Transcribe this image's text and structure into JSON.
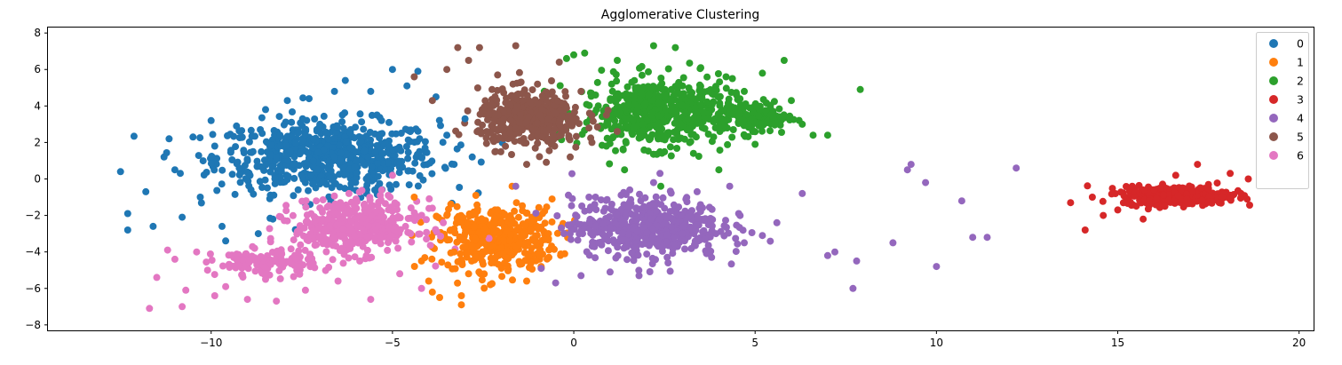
{
  "chart_data": {
    "type": "scatter",
    "title": "Agglomerative Clustering",
    "xlabel": "",
    "ylabel": "",
    "xlim": [
      -14.5,
      20.4
    ],
    "ylim": [
      -8.3,
      8.3
    ],
    "xticks": [
      -10,
      -5,
      0,
      5,
      10,
      15,
      20
    ],
    "yticks": [
      -8,
      -6,
      -4,
      -2,
      0,
      2,
      4,
      6,
      8
    ],
    "grid": false,
    "legend_position": "top-right",
    "series": [
      {
        "name": "0",
        "color": "#1f77b4",
        "approx_center": [
          -6.5,
          1.5
        ],
        "points": [
          [
            -12.5,
            0.4
          ],
          [
            -12.3,
            -1.9
          ],
          [
            -12.3,
            -2.8
          ],
          [
            -11.8,
            -0.7
          ],
          [
            -11.6,
            -2.6
          ],
          [
            -11.3,
            1.2
          ],
          [
            -11.0,
            0.5
          ],
          [
            -10.8,
            -2.1
          ],
          [
            -10.5,
            2.3
          ],
          [
            -10.3,
            -1.0
          ],
          [
            -10.0,
            3.2
          ],
          [
            -9.9,
            1.8
          ],
          [
            -9.7,
            -2.6
          ],
          [
            -9.6,
            -3.4
          ],
          [
            -9.3,
            2.9
          ],
          [
            -9.0,
            1.0
          ],
          [
            -8.7,
            -3.0
          ],
          [
            -8.5,
            3.8
          ],
          [
            -8.3,
            -2.2
          ],
          [
            -8.1,
            2.4
          ],
          [
            -7.9,
            4.3
          ],
          [
            -7.6,
            -0.6
          ],
          [
            -7.3,
            4.4
          ],
          [
            -7.0,
            3.0
          ],
          [
            -6.6,
            4.8
          ],
          [
            -6.3,
            5.4
          ],
          [
            -6.0,
            1.0
          ],
          [
            -5.6,
            4.8
          ],
          [
            -5.3,
            3.2
          ],
          [
            -5.0,
            6.0
          ],
          [
            -4.9,
            -0.3
          ],
          [
            -4.6,
            5.1
          ],
          [
            -4.3,
            5.9
          ],
          [
            -4.1,
            1.7
          ],
          [
            -3.8,
            4.5
          ],
          [
            -3.5,
            2.4
          ],
          [
            -3.3,
            0.8
          ],
          [
            -3.0,
            3.3
          ],
          [
            -2.8,
            1.2
          ]
        ]
      },
      {
        "name": "1",
        "color": "#ff7f0e",
        "approx_center": [
          -2.2,
          -3.2
        ],
        "points": [
          [
            -4.4,
            -1.0
          ],
          [
            -4.2,
            -4.5
          ],
          [
            -4.0,
            -5.6
          ],
          [
            -3.9,
            -6.2
          ],
          [
            -3.7,
            -6.5
          ],
          [
            -3.5,
            -2.0
          ],
          [
            -3.3,
            -4.0
          ],
          [
            -3.1,
            -6.4
          ],
          [
            -3.1,
            -6.9
          ],
          [
            -2.9,
            -5.2
          ],
          [
            -2.7,
            -0.9
          ],
          [
            -2.5,
            -3.1
          ],
          [
            -2.3,
            -5.8
          ],
          [
            -2.1,
            -1.7
          ],
          [
            -1.9,
            -4.6
          ],
          [
            -1.7,
            -0.4
          ],
          [
            -1.5,
            -3.5
          ],
          [
            -1.3,
            -5.6
          ],
          [
            -1.1,
            -2.3
          ],
          [
            -0.9,
            -4.8
          ],
          [
            -0.7,
            -3.0
          ],
          [
            -0.6,
            -1.1
          ]
        ]
      },
      {
        "name": "2",
        "color": "#2ca02c",
        "approx_center": [
          2.3,
          3.2
        ],
        "points": [
          [
            -0.2,
            6.6
          ],
          [
            0.0,
            6.8
          ],
          [
            0.3,
            6.9
          ],
          [
            0.6,
            4.6
          ],
          [
            0.9,
            1.8
          ],
          [
            1.2,
            6.5
          ],
          [
            1.4,
            0.5
          ],
          [
            1.6,
            5.3
          ],
          [
            1.9,
            3.0
          ],
          [
            2.2,
            7.3
          ],
          [
            2.4,
            -0.4
          ],
          [
            2.8,
            7.2
          ],
          [
            3.0,
            5.1
          ],
          [
            3.3,
            1.4
          ],
          [
            3.5,
            6.1
          ],
          [
            3.8,
            3.8
          ],
          [
            4.0,
            0.5
          ],
          [
            4.2,
            5.6
          ],
          [
            4.4,
            2.7
          ],
          [
            4.7,
            4.8
          ],
          [
            5.0,
            1.9
          ],
          [
            5.2,
            5.8
          ],
          [
            5.5,
            3.4
          ],
          [
            5.8,
            6.5
          ],
          [
            6.0,
            4.3
          ],
          [
            6.3,
            3.0
          ],
          [
            6.6,
            2.4
          ],
          [
            7.0,
            2.4
          ],
          [
            7.9,
            4.9
          ]
        ]
      },
      {
        "name": "3",
        "color": "#d62728",
        "approx_center": [
          16.6,
          -1.0
        ],
        "points": [
          [
            13.7,
            -1.3
          ],
          [
            14.1,
            -2.8
          ],
          [
            14.3,
            -1.0
          ],
          [
            14.6,
            -2.0
          ],
          [
            15.0,
            -1.7
          ],
          [
            15.4,
            -0.4
          ],
          [
            15.7,
            -2.2
          ],
          [
            16.0,
            -0.6
          ],
          [
            16.3,
            -1.5
          ],
          [
            16.6,
            0.2
          ],
          [
            16.9,
            -1.1
          ],
          [
            17.2,
            0.8
          ],
          [
            17.5,
            -0.3
          ],
          [
            17.8,
            -1.3
          ],
          [
            18.1,
            0.3
          ],
          [
            18.4,
            -0.8
          ],
          [
            18.6,
            0.0
          ]
        ]
      },
      {
        "name": "4",
        "color": "#9467bd",
        "approx_center": [
          2.2,
          -2.8
        ],
        "points": [
          [
            -1.6,
            -0.4
          ],
          [
            -0.9,
            -4.9
          ],
          [
            -0.5,
            -5.7
          ],
          [
            -0.1,
            -3.0
          ],
          [
            0.2,
            -5.3
          ],
          [
            0.6,
            -1.0
          ],
          [
            1.0,
            -5.1
          ],
          [
            1.4,
            -2.4
          ],
          [
            1.8,
            -5.3
          ],
          [
            2.2,
            -0.2
          ],
          [
            2.6,
            -4.6
          ],
          [
            3.0,
            -3.0
          ],
          [
            3.4,
            -0.7
          ],
          [
            3.8,
            -4.3
          ],
          [
            4.3,
            -0.4
          ],
          [
            4.7,
            -3.5
          ],
          [
            5.2,
            -3.1
          ],
          [
            5.6,
            -2.4
          ],
          [
            6.3,
            -0.8
          ],
          [
            7.0,
            -4.2
          ],
          [
            7.2,
            -4.0
          ],
          [
            7.7,
            -6.0
          ],
          [
            7.8,
            -4.5
          ],
          [
            8.8,
            -3.5
          ],
          [
            9.2,
            0.5
          ],
          [
            9.3,
            0.8
          ],
          [
            9.7,
            -0.2
          ],
          [
            10.0,
            -4.8
          ],
          [
            10.7,
            -1.2
          ],
          [
            11.0,
            -3.2
          ],
          [
            11.4,
            -3.2
          ],
          [
            12.2,
            0.6
          ]
        ]
      },
      {
        "name": "5",
        "color": "#8c564b",
        "approx_center": [
          -1.2,
          3.2
        ],
        "points": [
          [
            -4.4,
            5.6
          ],
          [
            -3.9,
            4.3
          ],
          [
            -3.5,
            6.0
          ],
          [
            -3.2,
            7.2
          ],
          [
            -2.9,
            6.5
          ],
          [
            -2.6,
            7.2
          ],
          [
            -2.4,
            2.6
          ],
          [
            -2.1,
            5.7
          ],
          [
            -1.8,
            4.1
          ],
          [
            -1.6,
            7.3
          ],
          [
            -1.3,
            0.8
          ],
          [
            -1.0,
            5.2
          ],
          [
            -0.7,
            3.3
          ],
          [
            -0.4,
            6.4
          ],
          [
            -0.1,
            1.2
          ],
          [
            0.2,
            4.8
          ],
          [
            0.5,
            2.0
          ],
          [
            0.9,
            3.5
          ],
          [
            1.2,
            2.6
          ]
        ]
      },
      {
        "name": "6",
        "color": "#e377c2",
        "approx_center": [
          -6.3,
          -3.0
        ],
        "points": [
          [
            -11.7,
            -7.1
          ],
          [
            -11.5,
            -5.4
          ],
          [
            -11.2,
            -3.9
          ],
          [
            -11.0,
            -4.4
          ],
          [
            -10.8,
            -7.0
          ],
          [
            -10.7,
            -6.1
          ],
          [
            -10.4,
            -4.0
          ],
          [
            -10.1,
            -5.0
          ],
          [
            -9.9,
            -6.4
          ],
          [
            -9.6,
            -5.9
          ],
          [
            -9.3,
            -4.4
          ],
          [
            -9.0,
            -6.6
          ],
          [
            -8.8,
            -3.8
          ],
          [
            -8.5,
            -5.5
          ],
          [
            -8.2,
            -6.7
          ],
          [
            -7.9,
            -2.3
          ],
          [
            -7.6,
            -4.8
          ],
          [
            -7.4,
            -6.1
          ],
          [
            -7.1,
            -1.2
          ],
          [
            -6.8,
            -3.6
          ],
          [
            -6.5,
            -5.6
          ],
          [
            -6.2,
            -0.8
          ],
          [
            -5.9,
            -4.5
          ],
          [
            -5.6,
            -6.6
          ],
          [
            -5.3,
            -2.0
          ],
          [
            -5.0,
            0.2
          ],
          [
            -4.8,
            -5.2
          ],
          [
            -4.5,
            -3.0
          ],
          [
            -4.2,
            -6.0
          ],
          [
            -3.9,
            -1.6
          ],
          [
            -3.6,
            -2.4
          ]
        ]
      }
    ]
  }
}
